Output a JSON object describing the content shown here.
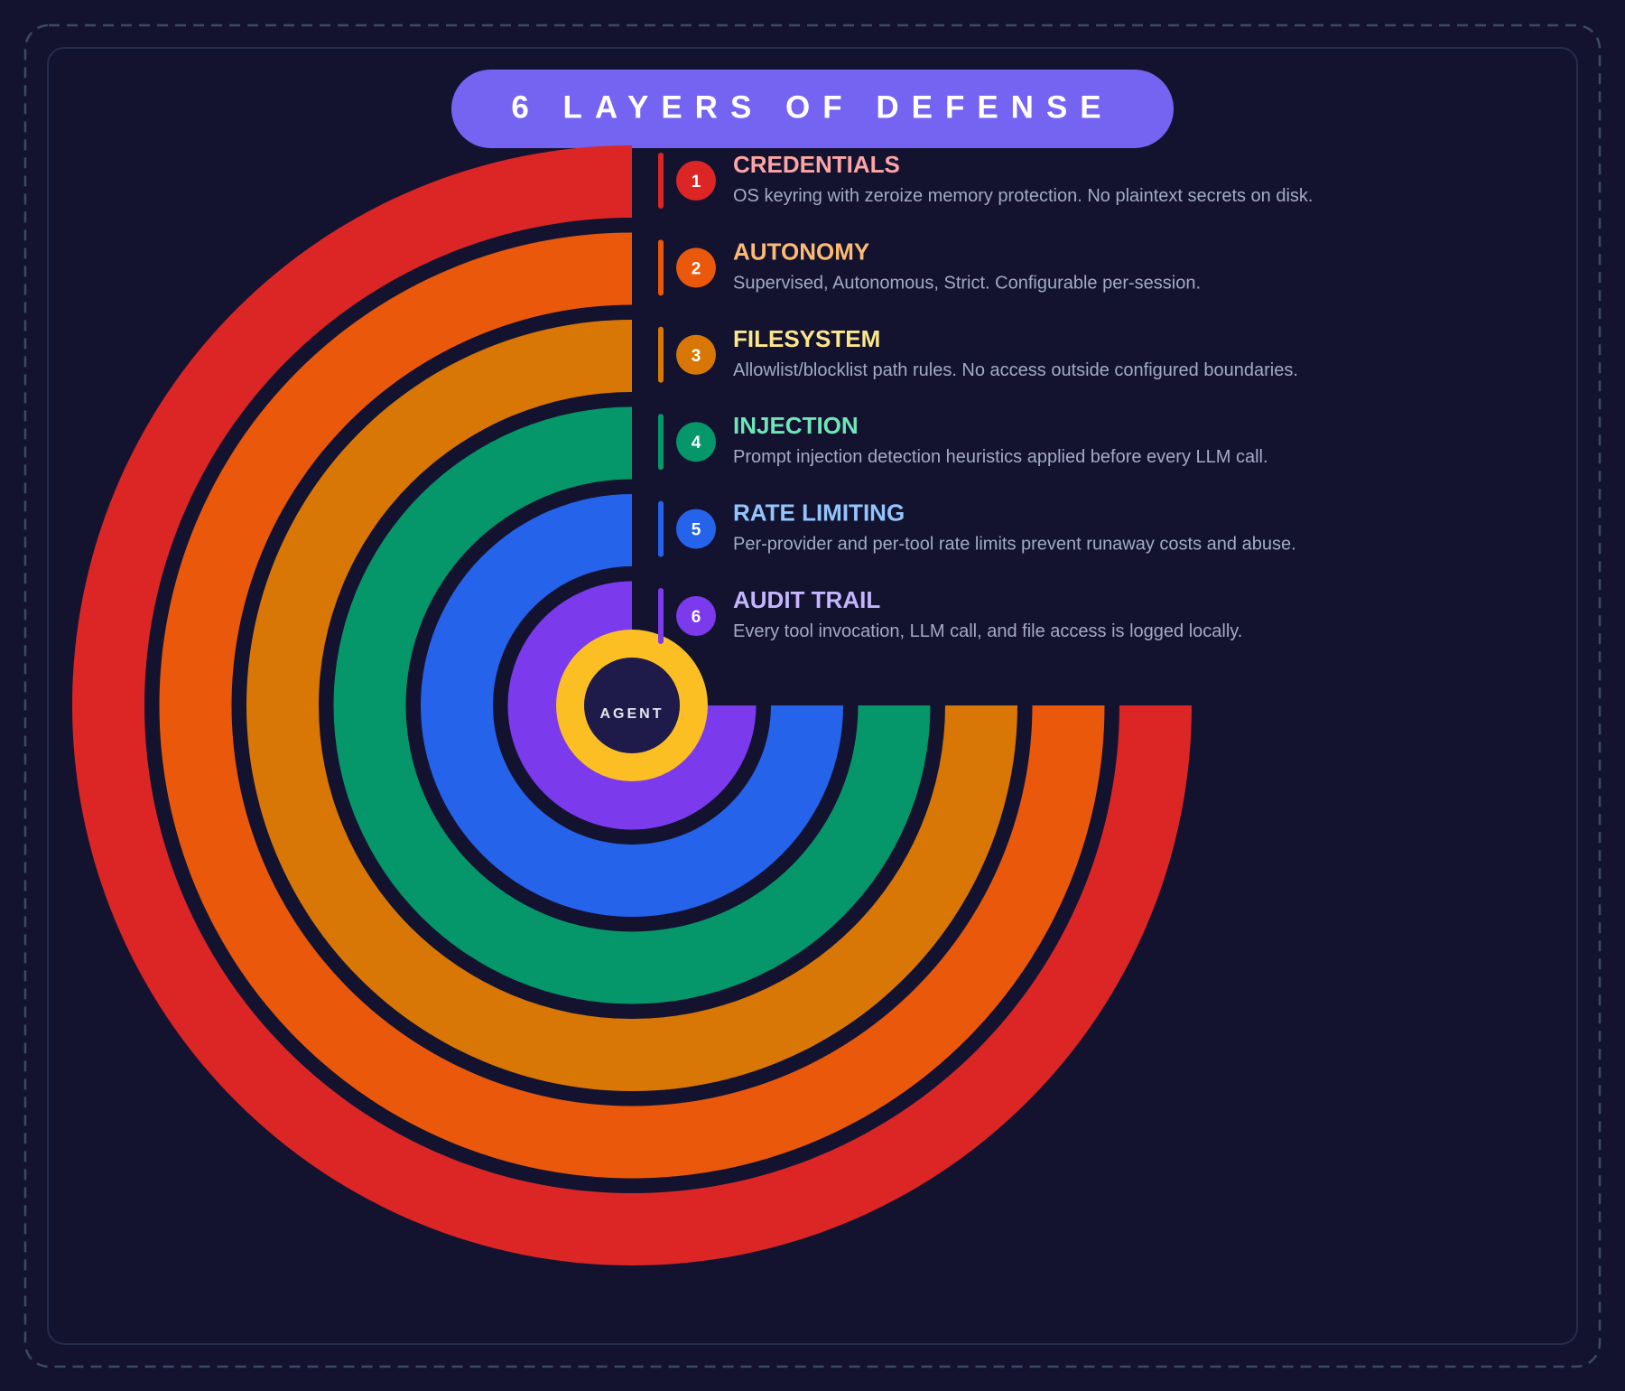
{
  "title": "6 LAYERS OF DEFENSE",
  "center_label": "AGENT",
  "layers": [
    {
      "number": 1,
      "name": "CREDENTIALS",
      "description": "OS keyring with zeroize memory protection. No plaintext secrets on disk.",
      "color": "#dc2626",
      "text_color": "#fca5a5"
    },
    {
      "number": 2,
      "name": "AUTONOMY",
      "description": "Supervised, Autonomous, Strict. Configurable per-session.",
      "color": "#ea580c",
      "text_color": "#fdba74"
    },
    {
      "number": 3,
      "name": "FILESYSTEM",
      "description": "Allowlist/blocklist path rules. No access outside configured boundaries.",
      "color": "#d97706",
      "text_color": "#fde68a"
    },
    {
      "number": 4,
      "name": "INJECTION",
      "description": "Prompt injection detection heuristics applied before every LLM call.",
      "color": "#059669",
      "text_color": "#6ee7b7"
    },
    {
      "number": 5,
      "name": "RATE LIMITING",
      "description": "Per-provider and per-tool rate limits prevent runaway costs and abuse.",
      "color": "#2563eb",
      "text_color": "#93c5fd"
    },
    {
      "number": 6,
      "name": "AUDIT TRAIL",
      "description": "Every tool invocation, LLM call, and file access is logged locally.",
      "color": "#7c3aed",
      "text_color": "#c4b5fd"
    }
  ]
}
